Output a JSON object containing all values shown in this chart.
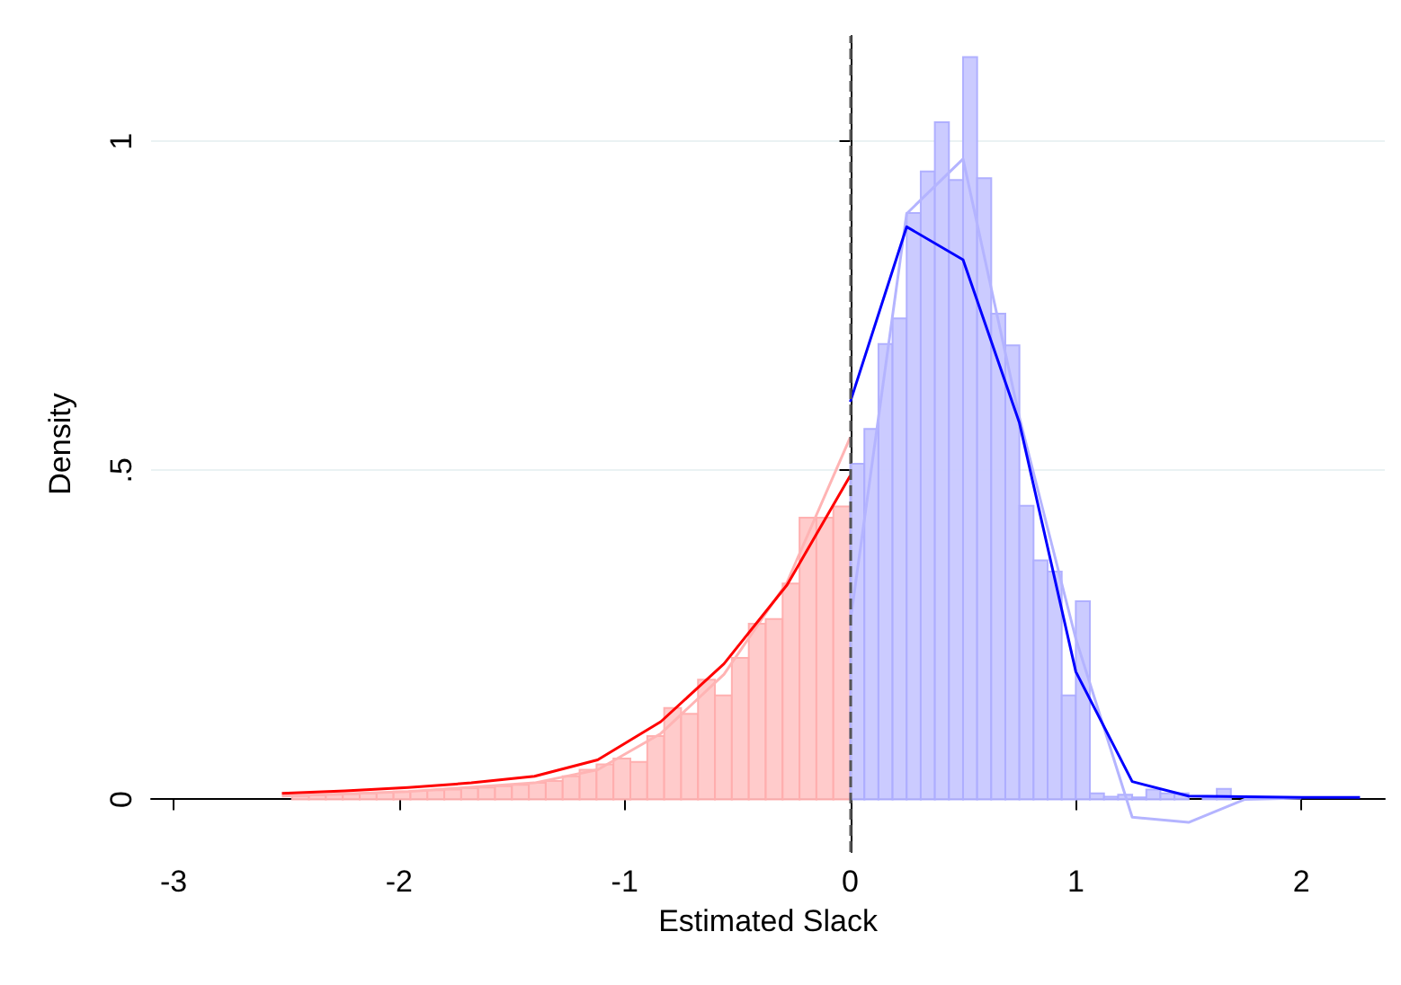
{
  "chart_data": {
    "type": "histogram",
    "xlabel": "Estimated Slack",
    "ylabel": "Density",
    "xlim": [
      -3.1,
      2.37
    ],
    "ylim": [
      -0.08,
      1.16
    ],
    "xticks": [
      -3,
      -2,
      -1,
      0,
      1,
      2
    ],
    "yticks": [
      0,
      {
        "value": 0.5,
        "label": ".5"
      },
      1
    ],
    "grid": "y",
    "ref_lines": [
      {
        "axis": "x",
        "value": 0,
        "label": null,
        "color": "#555555",
        "line_style": "dashed"
      }
    ],
    "series": [
      {
        "color": "#ffc8c8",
        "bins": [
          -2.475,
          -2.4,
          -2.325,
          -2.25,
          -2.175,
          -2.1,
          -2.025,
          -1.95,
          -1.875,
          -1.8,
          -1.725,
          -1.65,
          -1.575,
          -1.5,
          -1.425,
          -1.35,
          -1.275,
          -1.2,
          -1.125,
          -1.05,
          -0.975,
          -0.9,
          -0.825,
          -0.75,
          -0.675,
          -0.6,
          -0.525,
          -0.45,
          -0.375,
          -0.3,
          -0.225,
          -0.15,
          -0.075,
          0
        ],
        "values": [
          0.005,
          0.006,
          0.007,
          0.008,
          0.009,
          0.01,
          0.012,
          0.013,
          0.014,
          0.015,
          0.017,
          0.018,
          0.02,
          0.022,
          0.025,
          0.028,
          0.035,
          0.045,
          0.053,
          0.062,
          0.057,
          0.096,
          0.139,
          0.13,
          0.182,
          0.158,
          0.215,
          0.267,
          0.274,
          0.328,
          0.428,
          0.428,
          0.445
        ]
      },
      {
        "color": "#c8c8ff",
        "bins": [
          0,
          0.0625,
          0.125,
          0.1875,
          0.25,
          0.3125,
          0.375,
          0.4375,
          0.5,
          0.5625,
          0.625,
          0.6875,
          0.75,
          0.8125,
          0.875,
          0.9375,
          1,
          1.0625,
          1.125,
          1.1875,
          1.25,
          1.3125,
          1.375,
          1.4375,
          1.5,
          1.5625,
          1.625,
          1.6875,
          1.75,
          1.8125,
          1.875
        ],
        "values": [
          0.51,
          0.563,
          0.692,
          0.731,
          0.891,
          0.954,
          1.029,
          0.941,
          1.128,
          0.944,
          0.738,
          0.69,
          0.446,
          0.363,
          0.346,
          0.158,
          0.301,
          0.009,
          0.004,
          0.007,
          0.003,
          0.015,
          0.009,
          0.009,
          null,
          0.002,
          0.016,
          null,
          null,
          null
        ]
      },
      {
        "type": "line",
        "color": "#ffb4b4",
        "x": [
          -2.52,
          -1.96,
          -1.4,
          -1.12,
          -0.84,
          -0.56,
          -0.28,
          0
        ],
        "values": [
          0.005,
          0.012,
          0.025,
          0.045,
          0.1,
          0.19,
          0.33,
          0.55
        ]
      },
      {
        "type": "line",
        "color": "#b4b4ff",
        "x": [
          0,
          0.25,
          0.5,
          0.75,
          1,
          1.25,
          1.5,
          1.75,
          2
        ],
        "values": [
          0.27,
          0.89,
          0.973,
          0.58,
          0.244,
          -0.027,
          -0.035,
          0,
          0.002
        ]
      },
      {
        "type": "line",
        "color": "#ff0000",
        "x": [
          -2.52,
          -2.24,
          -1.96,
          -1.68,
          -1.4,
          -1.12,
          -0.84,
          -0.56,
          -0.28,
          0
        ],
        "values": [
          0.009,
          0.013,
          0.018,
          0.025,
          0.035,
          0.06,
          0.118,
          0.206,
          0.326,
          0.492
        ]
      },
      {
        "type": "line",
        "color": "#0000ff",
        "x": [
          0,
          0.25,
          0.5,
          0.75,
          1,
          1.25,
          1.5,
          1.75,
          2,
          2.26
        ],
        "values": [
          0.604,
          0.87,
          0.82,
          0.572,
          0.194,
          0.027,
          0.005,
          0.004,
          0.003,
          0.003
        ]
      }
    ]
  }
}
